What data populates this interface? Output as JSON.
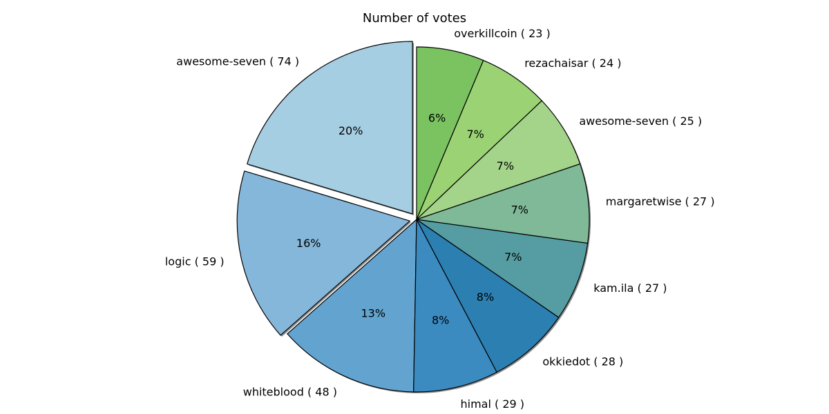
{
  "chart_data": {
    "type": "pie",
    "title": "Number of votes",
    "start_angle_deg": 90,
    "direction": "counterclockwise",
    "explode_first": [
      0,
      1
    ],
    "shadow": true,
    "slices": [
      {
        "label": "awesome-seven ( 74 )",
        "value": 74,
        "pct": "20%",
        "color": "#a6cee3"
      },
      {
        "label": "logic ( 59 )",
        "value": 59,
        "pct": "16%",
        "color": "#85b7da"
      },
      {
        "label": "whiteblood ( 48 )",
        "value": 48,
        "pct": "13%",
        "color": "#62a3cf"
      },
      {
        "label": "himal ( 29 )",
        "value": 29,
        "pct": "8%",
        "color": "#3b8bc1"
      },
      {
        "label": "okkiedot ( 28 )",
        "value": 28,
        "pct": "8%",
        "color": "#2c7fb1"
      },
      {
        "label": "kam.ila ( 27 )",
        "value": 27,
        "pct": "7%",
        "color": "#559da2"
      },
      {
        "label": "margaretwise ( 27 )",
        "value": 27,
        "pct": "7%",
        "color": "#7fb998"
      },
      {
        "label": "awesome-seven ( 25 )",
        "value": 25,
        "pct": "7%",
        "color": "#a3d48a"
      },
      {
        "label": "rezachaisar ( 24 )",
        "value": 24,
        "pct": "7%",
        "color": "#9bd374"
      },
      {
        "label": "overkillcoin ( 23 )",
        "value": 23,
        "pct": "6%",
        "color": "#7bc361"
      }
    ]
  }
}
